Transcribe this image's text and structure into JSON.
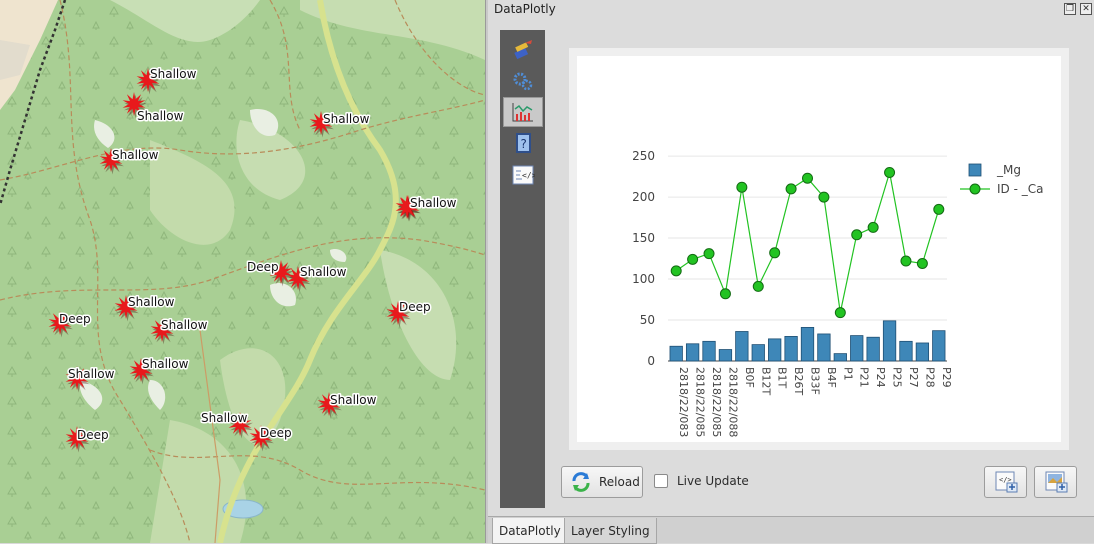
{
  "map": {
    "markers": [
      {
        "label": "Shallow"
      },
      {
        "label": "Shallow"
      },
      {
        "label": "Shallow"
      },
      {
        "label": "Shallow"
      },
      {
        "label": "Shallow"
      },
      {
        "label": "Deep"
      },
      {
        "label": "Shallow"
      },
      {
        "label": "Shallow"
      },
      {
        "label": "Deep"
      },
      {
        "label": "Shallow"
      },
      {
        "label": "Deep"
      },
      {
        "label": "Shallow"
      },
      {
        "label": "Shallow"
      },
      {
        "label": "Shallow"
      },
      {
        "label": "Shallow"
      },
      {
        "label": "Deep"
      },
      {
        "label": "Deep"
      },
      {
        "label": "Shallow"
      }
    ]
  },
  "panel": {
    "title": "DataPlotly",
    "float_icon": "float-window-icon",
    "close_icon": "close-icon"
  },
  "toolstrip": [
    {
      "icon": "paint-brush-icon"
    },
    {
      "icon": "gears-icon"
    },
    {
      "icon": "plot-icon"
    },
    {
      "icon": "help-book-icon"
    },
    {
      "icon": "code-icon"
    }
  ],
  "controls": {
    "reload_label": "Reload",
    "live_update_label": "Live Update",
    "live_update_checked": false
  },
  "tabs": [
    {
      "label": "DataPlotly",
      "active": true
    },
    {
      "label": "Layer Styling",
      "active": false
    }
  ],
  "colors": {
    "bar": "#3e87b8",
    "line": "#22c322",
    "marker": "#e8191c"
  },
  "chart_data": {
    "type": "bar",
    "categories": [
      "2818/22/083",
      "2818/22/085",
      "2818/22/085",
      "2818/22/088",
      "B0F",
      "B12T",
      "B1T",
      "B26T",
      "B33F",
      "B4F",
      "P1",
      "P21",
      "P24",
      "P25",
      "P27",
      "P28",
      "P29"
    ],
    "category_labels": [
      "2818/22/083",
      "2818/22/085",
      "2818/22/085",
      "2818/22/088",
      "B0F",
      "B12T",
      "B1T",
      "B26T",
      "B33F",
      "B4F",
      "P1",
      "P21",
      "P24",
      "P25",
      "P27",
      "P28",
      "P29"
    ],
    "series": [
      {
        "name": "_Mg",
        "type": "bar",
        "values": [
          18,
          21,
          24,
          14,
          36,
          20,
          27,
          30,
          41,
          33,
          9,
          31,
          29,
          49,
          24,
          22,
          37
        ]
      },
      {
        "name": "ID - _Ca",
        "type": "line",
        "values": [
          110,
          124,
          131,
          82,
          212,
          91,
          132,
          210,
          223,
          200,
          59,
          154,
          163,
          230,
          122,
          119,
          185
        ]
      }
    ],
    "yticks": [
      0,
      50,
      100,
      150,
      200,
      250
    ],
    "ylim": [
      0,
      255
    ],
    "grid": true,
    "legend_position": "right"
  }
}
